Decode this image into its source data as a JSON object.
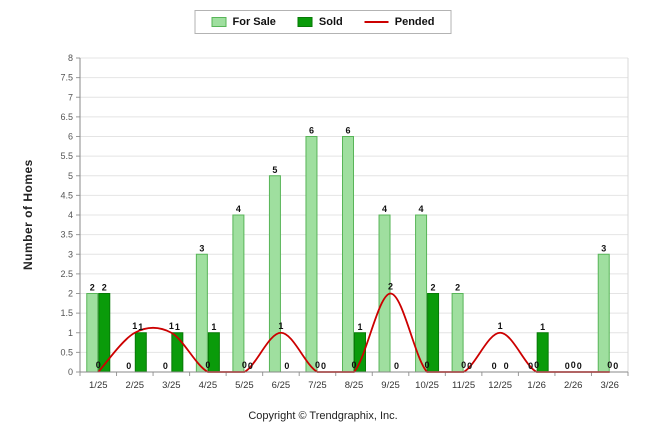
{
  "legend": {
    "items": [
      {
        "label": "For Sale",
        "color": "#9fdf9f",
        "border": "#58b558",
        "type": "box"
      },
      {
        "label": "Sold",
        "color": "#0a9b0a",
        "border": "#077a07",
        "type": "box"
      },
      {
        "label": "Pended",
        "color": "#cc0000",
        "type": "line"
      }
    ]
  },
  "ylabel": "Number of Homes",
  "footer": "Copyright © Trendgraphix, Inc.",
  "chart_data": {
    "type": "bar",
    "subtype": "grouped bars with smooth line overlay",
    "categories": [
      "1/25",
      "2/25",
      "3/25",
      "4/25",
      "5/25",
      "6/25",
      "7/25",
      "8/25",
      "9/25",
      "10/25",
      "11/25",
      "12/25",
      "1/26",
      "2/26",
      "3/26"
    ],
    "series": [
      {
        "name": "For Sale",
        "type": "bar",
        "color": "#9fdf9f",
        "border": "#58b558",
        "values": [
          2,
          0,
          0,
          3,
          4,
          5,
          6,
          6,
          4,
          4,
          2,
          0,
          0,
          0,
          3
        ]
      },
      {
        "name": "Sold",
        "type": "bar",
        "color": "#0a9b0a",
        "border": "#077a07",
        "values": [
          2,
          1,
          1,
          1,
          0,
          0,
          0,
          1,
          0,
          2,
          0,
          0,
          1,
          0,
          0
        ]
      },
      {
        "name": "Pended",
        "type": "line",
        "color": "#cc0000",
        "values": [
          0,
          1,
          1,
          0,
          0,
          1,
          0,
          0,
          2,
          0,
          0,
          1,
          0,
          0,
          0
        ]
      }
    ],
    "title": "",
    "xlabel": "",
    "ylabel": "Number of Homes",
    "ylim": [
      0,
      8
    ],
    "ytick_step": 0.5,
    "grid": true,
    "legend_position": "top center",
    "data_labels": true
  }
}
